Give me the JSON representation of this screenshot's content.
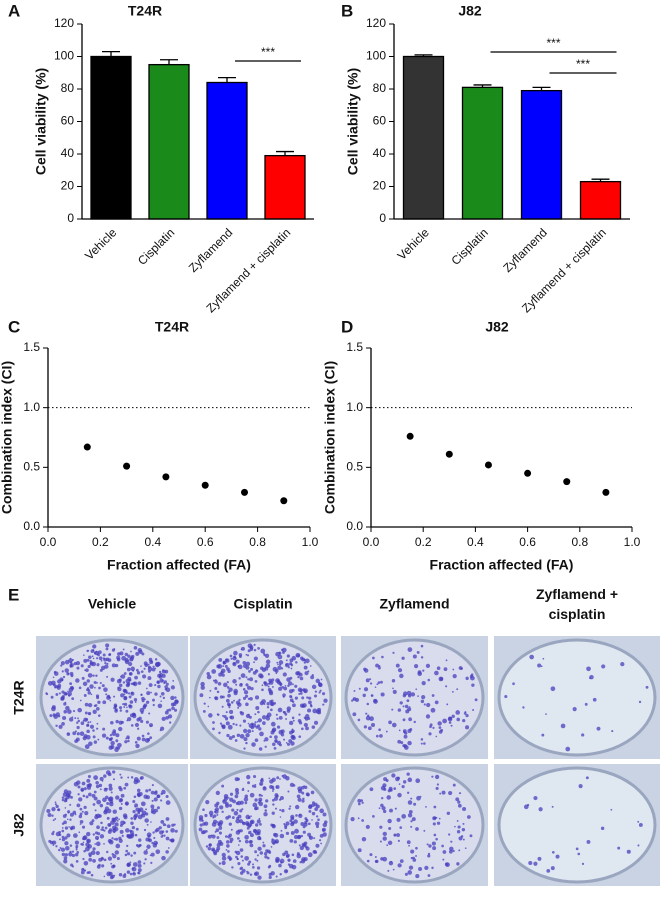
{
  "chart_data": [
    {
      "type": "bar",
      "panel": "A",
      "title": "T24R",
      "y_label": "Cell viability (%)",
      "categories": [
        "Vehicle",
        "Cisplatin",
        "Zyflamend",
        "Zyflamend + cisplatin"
      ],
      "values": [
        100,
        95,
        84,
        39
      ],
      "errors": [
        3,
        3,
        3,
        2.5
      ],
      "colors": [
        "#000000",
        "#1a8a1a",
        "#0000ff",
        "#ff0000"
      ],
      "ylim": [
        0,
        120
      ],
      "yticks": [
        0,
        20,
        40,
        60,
        80,
        100,
        120
      ],
      "annotations": [
        "***"
      ]
    },
    {
      "type": "bar",
      "panel": "B",
      "title": "J82",
      "y_label": "Cell viability (%)",
      "categories": [
        "Vehicle",
        "Cisplatin",
        "Zyflamend",
        "Zyflamend + cisplatin"
      ],
      "values": [
        100,
        81,
        79,
        23
      ],
      "errors": [
        1,
        1.5,
        2,
        1.5
      ],
      "colors": [
        "#333333",
        "#1a8a1a",
        "#0000ff",
        "#ff0000"
      ],
      "ylim": [
        0,
        120
      ],
      "yticks": [
        0,
        20,
        40,
        60,
        80,
        100,
        120
      ],
      "annotations": [
        "***",
        "***"
      ]
    },
    {
      "type": "scatter",
      "panel": "C",
      "title": "T24R",
      "x_label": "Fraction affected (FA)",
      "y_label": "Combination index (CI)",
      "x": [
        0.15,
        0.3,
        0.45,
        0.6,
        0.75,
        0.9
      ],
      "values": [
        0.67,
        0.51,
        0.42,
        0.35,
        0.29,
        0.22
      ],
      "color": "#000000",
      "xlim": [
        0,
        1
      ],
      "xticks": [
        {
          "value": 0,
          "label": "0.0"
        },
        0.2,
        0.4,
        0.6,
        0.8,
        {
          "value": 1,
          "label": "1.0"
        }
      ],
      "ylim": [
        0,
        1.5
      ],
      "yticks": [
        {
          "value": 0,
          "label": "0.0"
        },
        0.5,
        {
          "value": 1,
          "label": "1.0"
        },
        1.5
      ],
      "reference_line": 1
    },
    {
      "type": "scatter",
      "panel": "D",
      "title": "J82",
      "x_label": "Fraction affected (FA)",
      "y_label": "Combination index (CI)",
      "x": [
        0.15,
        0.3,
        0.45,
        0.6,
        0.75,
        0.9
      ],
      "values": [
        0.76,
        0.61,
        0.52,
        0.45,
        0.38,
        0.29
      ],
      "color": "#000000",
      "xlim": [
        0,
        1
      ],
      "xticks": [
        {
          "value": 0,
          "label": "0.0"
        },
        0.2,
        0.4,
        0.6,
        0.8,
        {
          "value": 1,
          "label": "1.0"
        }
      ],
      "ylim": [
        0,
        1.5
      ],
      "yticks": [
        {
          "value": 0,
          "label": "0.0"
        },
        0.5,
        {
          "value": 1,
          "label": "1.0"
        },
        1.5
      ],
      "reference_line": 1
    }
  ],
  "panel_e": {
    "panel": "E",
    "columns": [
      "Vehicle",
      "Cisplatin",
      "Zyflamend",
      "Zyflamend + cisplatin"
    ],
    "rows": [
      "T24R",
      "J82"
    ]
  }
}
